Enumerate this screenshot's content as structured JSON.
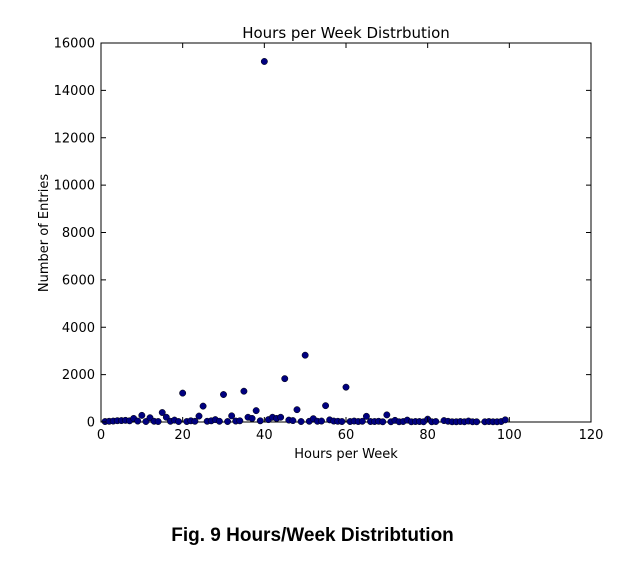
{
  "caption": "Fig. 9 Hours/Week Distribtution",
  "chart_data": {
    "type": "scatter",
    "title": "Hours per Week Distrbution",
    "xlabel": "Hours per Week",
    "ylabel": "Number of Entries",
    "xlim": [
      0,
      120
    ],
    "ylim": [
      0,
      16000
    ],
    "xticks": [
      0,
      20,
      40,
      60,
      80,
      100,
      120
    ],
    "yticks": [
      0,
      2000,
      4000,
      6000,
      8000,
      10000,
      12000,
      14000,
      16000
    ],
    "grid": false,
    "marker_color": "#00007f",
    "points": [
      {
        "x": 1,
        "y": 20
      },
      {
        "x": 2,
        "y": 30
      },
      {
        "x": 3,
        "y": 40
      },
      {
        "x": 4,
        "y": 55
      },
      {
        "x": 5,
        "y": 60
      },
      {
        "x": 6,
        "y": 70
      },
      {
        "x": 7,
        "y": 50
      },
      {
        "x": 8,
        "y": 150
      },
      {
        "x": 9,
        "y": 40
      },
      {
        "x": 10,
        "y": 280
      },
      {
        "x": 11,
        "y": 20
      },
      {
        "x": 12,
        "y": 180
      },
      {
        "x": 13,
        "y": 30
      },
      {
        "x": 14,
        "y": 20
      },
      {
        "x": 15,
        "y": 400
      },
      {
        "x": 16,
        "y": 200
      },
      {
        "x": 17,
        "y": 30
      },
      {
        "x": 18,
        "y": 80
      },
      {
        "x": 19,
        "y": 20
      },
      {
        "x": 20,
        "y": 1220
      },
      {
        "x": 21,
        "y": 20
      },
      {
        "x": 22,
        "y": 50
      },
      {
        "x": 23,
        "y": 30
      },
      {
        "x": 24,
        "y": 250
      },
      {
        "x": 25,
        "y": 670
      },
      {
        "x": 26,
        "y": 30
      },
      {
        "x": 27,
        "y": 50
      },
      {
        "x": 28,
        "y": 100
      },
      {
        "x": 29,
        "y": 30
      },
      {
        "x": 30,
        "y": 1160
      },
      {
        "x": 31,
        "y": 20
      },
      {
        "x": 32,
        "y": 260
      },
      {
        "x": 33,
        "y": 40
      },
      {
        "x": 34,
        "y": 50
      },
      {
        "x": 35,
        "y": 1300
      },
      {
        "x": 36,
        "y": 200
      },
      {
        "x": 37,
        "y": 150
      },
      {
        "x": 38,
        "y": 480
      },
      {
        "x": 39,
        "y": 50
      },
      {
        "x": 40,
        "y": 15220
      },
      {
        "x": 41,
        "y": 100
      },
      {
        "x": 42,
        "y": 200
      },
      {
        "x": 43,
        "y": 150
      },
      {
        "x": 44,
        "y": 200
      },
      {
        "x": 45,
        "y": 1830
      },
      {
        "x": 46,
        "y": 80
      },
      {
        "x": 47,
        "y": 60
      },
      {
        "x": 48,
        "y": 520
      },
      {
        "x": 49,
        "y": 20
      },
      {
        "x": 50,
        "y": 2820
      },
      {
        "x": 51,
        "y": 30
      },
      {
        "x": 52,
        "y": 140
      },
      {
        "x": 53,
        "y": 30
      },
      {
        "x": 54,
        "y": 40
      },
      {
        "x": 55,
        "y": 690
      },
      {
        "x": 56,
        "y": 90
      },
      {
        "x": 57,
        "y": 40
      },
      {
        "x": 58,
        "y": 30
      },
      {
        "x": 59,
        "y": 20
      },
      {
        "x": 60,
        "y": 1470
      },
      {
        "x": 61,
        "y": 20
      },
      {
        "x": 62,
        "y": 40
      },
      {
        "x": 63,
        "y": 20
      },
      {
        "x": 64,
        "y": 30
      },
      {
        "x": 65,
        "y": 240
      },
      {
        "x": 66,
        "y": 20
      },
      {
        "x": 67,
        "y": 20
      },
      {
        "x": 68,
        "y": 30
      },
      {
        "x": 69,
        "y": 10
      },
      {
        "x": 70,
        "y": 300
      },
      {
        "x": 71,
        "y": 10
      },
      {
        "x": 72,
        "y": 70
      },
      {
        "x": 73,
        "y": 10
      },
      {
        "x": 74,
        "y": 20
      },
      {
        "x": 75,
        "y": 80
      },
      {
        "x": 76,
        "y": 10
      },
      {
        "x": 77,
        "y": 20
      },
      {
        "x": 78,
        "y": 20
      },
      {
        "x": 79,
        "y": 10
      },
      {
        "x": 80,
        "y": 120
      },
      {
        "x": 81,
        "y": 10
      },
      {
        "x": 82,
        "y": 20
      },
      {
        "x": 84,
        "y": 60
      },
      {
        "x": 85,
        "y": 30
      },
      {
        "x": 86,
        "y": 10
      },
      {
        "x": 87,
        "y": 10
      },
      {
        "x": 88,
        "y": 20
      },
      {
        "x": 89,
        "y": 10
      },
      {
        "x": 90,
        "y": 40
      },
      {
        "x": 91,
        "y": 10
      },
      {
        "x": 92,
        "y": 10
      },
      {
        "x": 94,
        "y": 10
      },
      {
        "x": 95,
        "y": 20
      },
      {
        "x": 96,
        "y": 10
      },
      {
        "x": 97,
        "y": 10
      },
      {
        "x": 98,
        "y": 20
      },
      {
        "x": 99,
        "y": 90
      }
    ]
  }
}
